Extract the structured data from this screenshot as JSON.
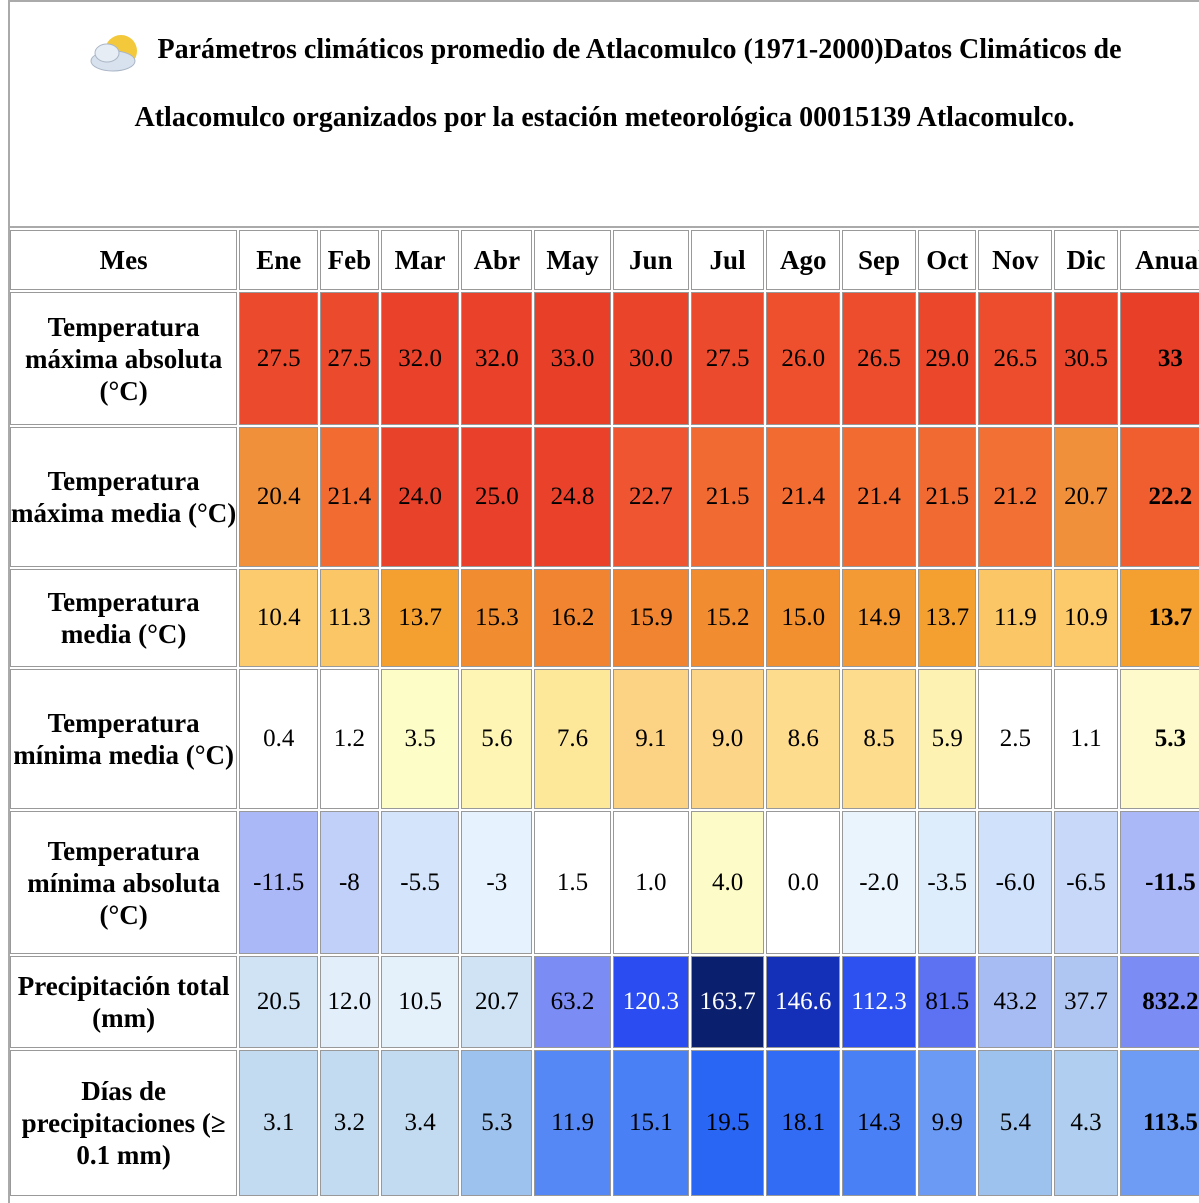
{
  "title": "Parámetros climáticos promedio de Atlacomulco (1971-2000)Datos Climáticos de Atlacomulco organizados por la estación meteorológica 00015139 Atlacomulco.",
  "table": {
    "header": [
      "Mes",
      "Ene",
      "Feb",
      "Mar",
      "Abr",
      "May",
      "Jun",
      "Jul",
      "Ago",
      "Sep",
      "Oct",
      "Nov",
      "Dic",
      "Anual"
    ],
    "rows": [
      [
        "Temperatura máxima absoluta (°C)",
        "27.5",
        "27.5",
        "32.0",
        "32.0",
        "33.0",
        "30.0",
        "27.5",
        "26.0",
        "26.5",
        "29.0",
        "26.5",
        "30.5",
        "33"
      ],
      [
        "Temperatura máxima media (°C)",
        "20.4",
        "21.4",
        "24.0",
        "25.0",
        "24.8",
        "22.7",
        "21.5",
        "21.4",
        "21.4",
        "21.5",
        "21.2",
        "20.7",
        "22.2"
      ],
      [
        "Temperatura media (°C)",
        "10.4",
        "11.3",
        "13.7",
        "15.3",
        "16.2",
        "15.9",
        "15.2",
        "15.0",
        "14.9",
        "13.7",
        "11.9",
        "10.9",
        "13.7"
      ],
      [
        "Temperatura mínima media (°C)",
        "0.4",
        "1.2",
        "3.5",
        "5.6",
        "7.6",
        "9.1",
        "9.0",
        "8.6",
        "8.5",
        "5.9",
        "2.5",
        "1.1",
        "5.3"
      ],
      [
        "Temperatura mínima absoluta (°C)",
        "-11.5",
        "-8",
        "-5.5",
        "-3",
        "1.5",
        "1.0",
        "4.0",
        "0.0",
        "-2.0",
        "-3.5",
        "-6.0",
        "-6.5",
        "-11.5"
      ],
      [
        "Precipitación total (mm)",
        "20.5",
        "12.0",
        "10.5",
        "20.7",
        "63.2",
        "120.3",
        "163.7",
        "146.6",
        "112.3",
        "81.5",
        "43.2",
        "37.7",
        "832.2"
      ],
      [
        "Días de precipitaciones (≥ 0.1 mm)",
        "3.1",
        "3.2",
        "3.4",
        "5.3",
        "11.9",
        "15.1",
        "19.5",
        "18.1",
        "14.3",
        "9.9",
        "5.4",
        "4.3",
        "113.5"
      ]
    ]
  }
}
